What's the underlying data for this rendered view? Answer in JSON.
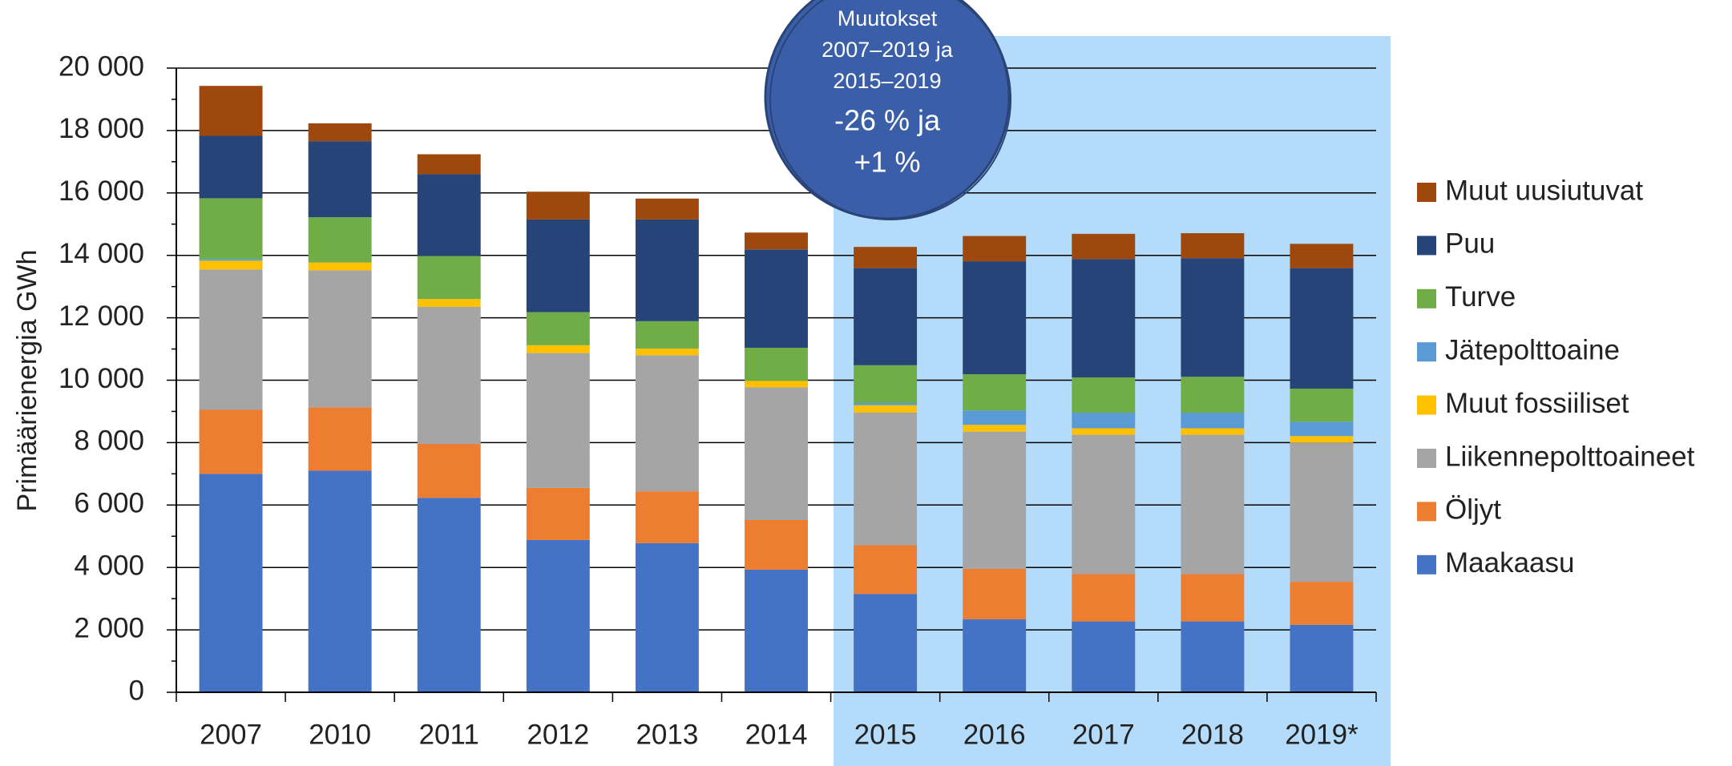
{
  "chart_data": {
    "type": "stacked_bar",
    "ylabel": "Primäärienergia GWh",
    "categories": [
      "2007",
      "2010",
      "2011",
      "2012",
      "2013",
      "2014",
      "2015",
      "2016",
      "2017",
      "2018",
      "2019*"
    ],
    "series": [
      {
        "name": "Maakaasu",
        "color": "#4472c4",
        "values": [
          7000,
          7100,
          6230,
          4880,
          4780,
          3930,
          3150,
          2340,
          2270,
          2270,
          2160
        ]
      },
      {
        "name": "Öljyt",
        "color": "#ed7d31",
        "values": [
          2050,
          2030,
          1730,
          1670,
          1660,
          1590,
          1560,
          1620,
          1520,
          1520,
          1380
        ]
      },
      {
        "name": "Liikennepolttoaineet",
        "color": "#a5a5a5",
        "values": [
          4500,
          4390,
          4390,
          4320,
          4360,
          4250,
          4250,
          4390,
          4460,
          4460,
          4460
        ]
      },
      {
        "name": "Muut fossiiliset",
        "color": "#ffc000",
        "values": [
          280,
          250,
          250,
          250,
          210,
          210,
          240,
          220,
          210,
          210,
          210
        ]
      },
      {
        "name": "Jätepolttoaine",
        "color": "#5b9bd5",
        "values": [
          50,
          0,
          0,
          0,
          0,
          0,
          70,
          460,
          500,
          500,
          460
        ]
      },
      {
        "name": "Turve",
        "color": "#70ad47",
        "values": [
          1950,
          1450,
          1380,
          1060,
          880,
          1060,
          1210,
          1160,
          1130,
          1150,
          1060
        ]
      },
      {
        "name": "Puu",
        "color": "#264478",
        "values": [
          2000,
          2440,
          2620,
          2970,
          3260,
          3150,
          3110,
          3620,
          3790,
          3800,
          3860
        ]
      },
      {
        "name": "Muut uusiutuvat",
        "color": "#9e480e",
        "values": [
          1600,
          570,
          640,
          890,
          670,
          540,
          680,
          810,
          810,
          800,
          780
        ]
      }
    ],
    "ylim": [
      0,
      20000
    ],
    "yticks": [
      0,
      {
        "value": 2000,
        "label": "2 000"
      },
      {
        "value": 4000,
        "label": "4 000"
      },
      {
        "value": 6000,
        "label": "6 000"
      },
      {
        "value": 8000,
        "label": "8 000"
      },
      {
        "value": 10000,
        "label": "10 000"
      },
      {
        "value": 12000,
        "label": "12 000"
      },
      {
        "value": 14000,
        "label": "14 000"
      },
      {
        "value": 16000,
        "label": "16 000"
      },
      {
        "value": 18000,
        "label": "18 000"
      },
      {
        "value": 20000,
        "label": "20 000"
      }
    ],
    "grid": true,
    "legend": "right",
    "annotation": {
      "lines": [
        "Muutokset",
        "2007–2019 ja",
        "2015–2019"
      ],
      "highlight": [
        "-26 % ja",
        "+1 %"
      ]
    }
  }
}
